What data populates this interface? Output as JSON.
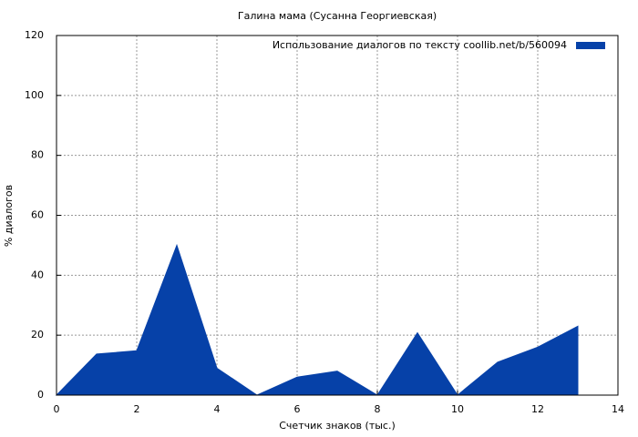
{
  "chart_data": {
    "type": "area",
    "title": "Галина мама (Сусанна Георгиевская)",
    "xlabel": "Счетчик знаков (тыс.)",
    "ylabel": "% диалогов",
    "x": [
      0,
      1,
      2,
      3,
      4,
      5,
      6,
      7,
      8,
      9,
      10,
      11,
      12,
      13
    ],
    "series": [
      {
        "name": "Использование диалогов по тексту  coollib.net/b/560094",
        "color": "#0641a8",
        "values": [
          0,
          13.7,
          14.8,
          50,
          9,
          0,
          6,
          8,
          0,
          20.8,
          0,
          11,
          16,
          23
        ]
      }
    ],
    "xlim": [
      0,
      14
    ],
    "xticks": [
      0,
      2,
      4,
      6,
      8,
      10,
      12,
      14
    ],
    "ylim": [
      0,
      120
    ],
    "yticks": [
      0,
      20,
      40,
      60,
      80,
      100,
      120
    ],
    "grid": true,
    "legend": "top-right"
  }
}
